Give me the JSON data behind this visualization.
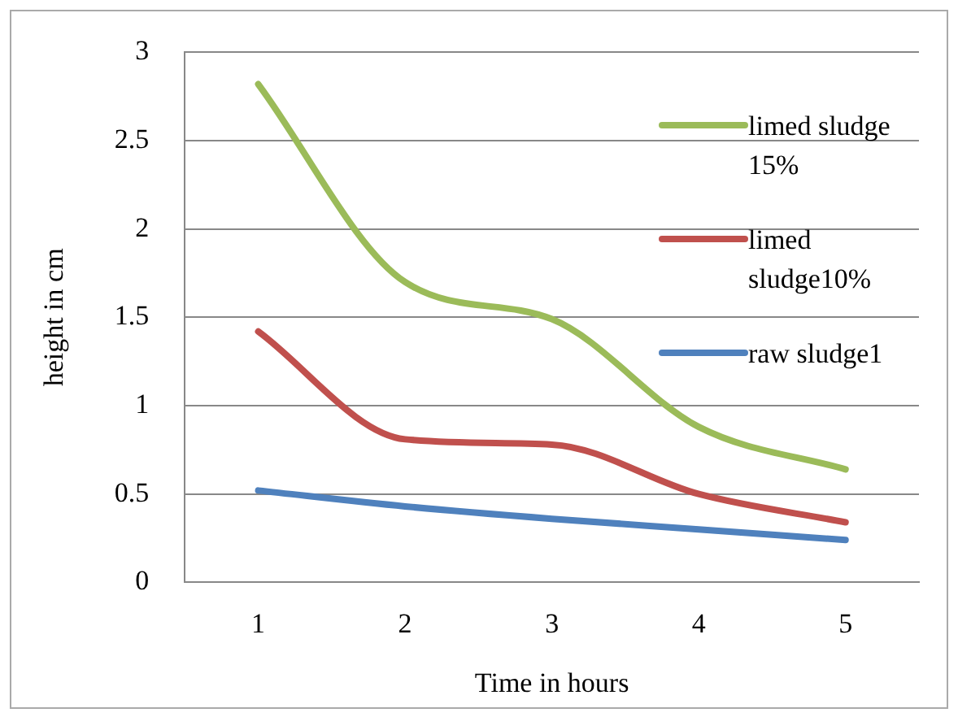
{
  "chart_data": {
    "type": "line",
    "xlabel": "Time in hours",
    "ylabel": "height in cm",
    "categories": [
      "1",
      "2",
      "3",
      "4",
      "5"
    ],
    "series": [
      {
        "name": "limed sludge 15%",
        "color": "#9bbb59",
        "values": [
          2.82,
          1.7,
          1.49,
          0.88,
          0.64
        ]
      },
      {
        "name": "limed sludge10%",
        "color": "#c0504d",
        "values": [
          1.42,
          0.81,
          0.78,
          0.5,
          0.34
        ]
      },
      {
        "name": "raw sludge1",
        "color": "#4f81bd",
        "values": [
          0.52,
          0.43,
          0.36,
          0.3,
          0.24
        ]
      }
    ],
    "ylim": [
      0,
      3
    ],
    "yticks": [
      0,
      0.5,
      1,
      1.5,
      2,
      2.5,
      3
    ],
    "grid": "y",
    "legend": "right",
    "marker": "none",
    "line_style": "solid"
  }
}
